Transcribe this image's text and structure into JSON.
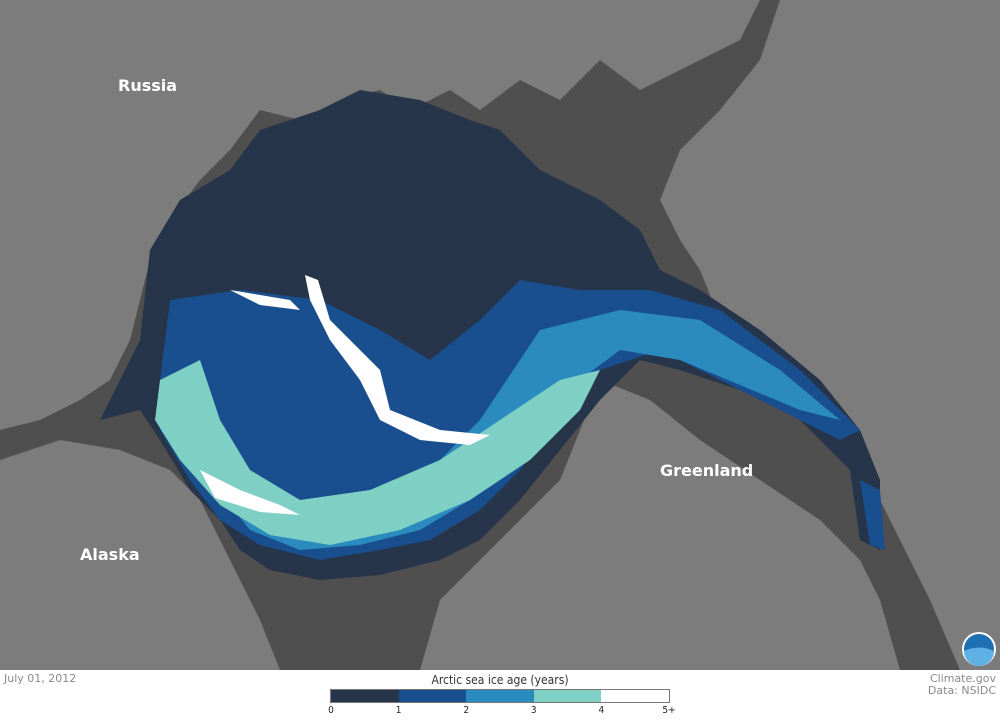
{
  "map": {
    "labels": {
      "russia": "Russia",
      "greenland": "Greenland",
      "alaska": "Alaska"
    },
    "colors": {
      "ocean": "#4f4f4f",
      "land": "#7c7c7c"
    }
  },
  "date": "July 01, 2012",
  "credits": {
    "source": "Climate.gov",
    "data": "Data: NSIDC"
  },
  "logo": "NOAA",
  "legend": {
    "title": "Arctic sea ice age (years)",
    "bins": [
      {
        "range": "0-1",
        "color": "#263549"
      },
      {
        "range": "1-2",
        "color": "#1a4f8f"
      },
      {
        "range": "2-3",
        "color": "#2b8bbf"
      },
      {
        "range": "3-4",
        "color": "#7ecfc4"
      },
      {
        "range": "4-5+",
        "color": "#ffffff"
      }
    ],
    "ticks": [
      "0",
      "1",
      "2",
      "3",
      "4",
      "5+"
    ]
  }
}
